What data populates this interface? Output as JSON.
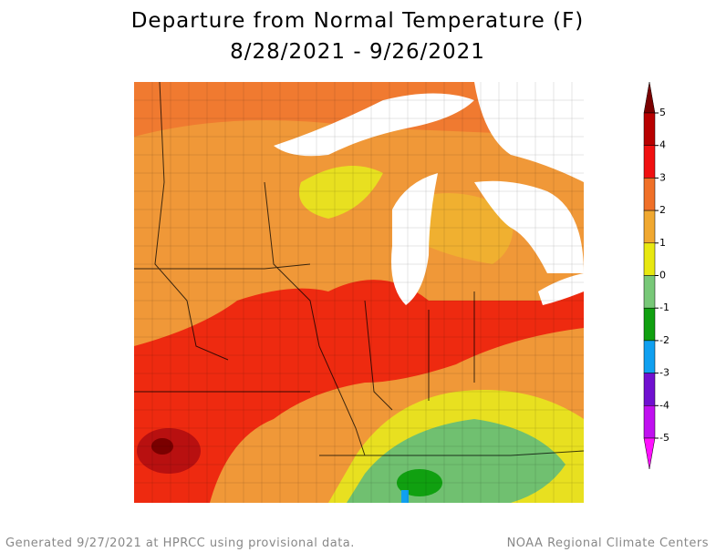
{
  "header": {
    "title": "Departure from Normal Temperature (F)",
    "subtitle": "8/28/2021 - 9/26/2021"
  },
  "legend": {
    "ticks": [
      5,
      4,
      3,
      2,
      1,
      0,
      -1,
      -2,
      -3,
      -4,
      -5
    ],
    "colors": [
      "#7a0000",
      "#b80000",
      "#f01010",
      "#f07028",
      "#f0a830",
      "#e8e810",
      "#78c878",
      "#10a010",
      "#10a0f0",
      "#7010d0",
      "#c010f0",
      "#ff10ff"
    ]
  },
  "footer": {
    "left": "Generated 9/27/2021 at HPRCC using provisional data.",
    "right": "NOAA Regional Climate Centers"
  }
}
